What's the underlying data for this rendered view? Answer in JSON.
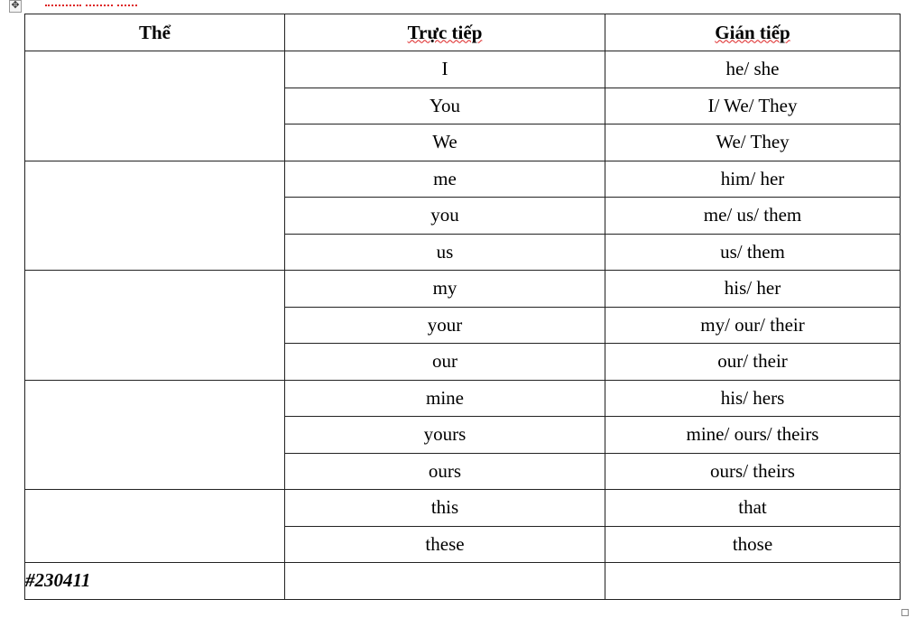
{
  "headers": {
    "col1": "Thể",
    "col2": "Trực tiếp",
    "col3": "Gián tiếp"
  },
  "rows": [
    [
      "I",
      "he/ she"
    ],
    [
      "You",
      "I/ We/ They"
    ],
    [
      "We",
      "We/ They"
    ],
    [
      "me",
      "him/ her"
    ],
    [
      "you",
      "me/ us/ them"
    ],
    [
      "us",
      "us/ them"
    ],
    [
      "my",
      "his/ her"
    ],
    [
      "your",
      "my/ our/ their"
    ],
    [
      "our",
      "our/ their"
    ],
    [
      "mine",
      "his/ hers"
    ],
    [
      "yours",
      "mine/ ours/ theirs"
    ],
    [
      "ours",
      "ours/ theirs"
    ],
    [
      "this",
      "that"
    ],
    [
      "these",
      "those"
    ]
  ],
  "footer_tag": "#230411"
}
